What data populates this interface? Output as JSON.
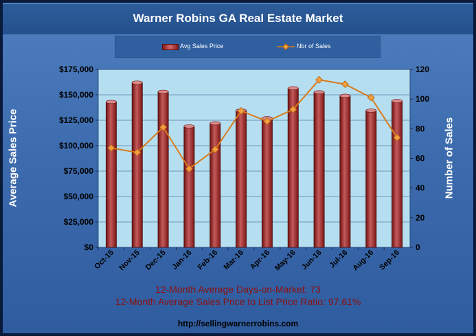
{
  "chart_data": {
    "type": "bar",
    "title": "Warner Robins GA Real Estate Market",
    "categories": [
      "Oct-15",
      "Nov-15",
      "Dec-15",
      "Jan-16",
      "Feb-16",
      "Mar-16",
      "Apr-16",
      "May-16",
      "Jun-16",
      "Jul-16",
      "Aug-16",
      "Sep-16"
    ],
    "series": [
      {
        "name": "Avg Sales Price",
        "type": "bar",
        "axis": "left",
        "values": [
          143000,
          162000,
          153000,
          119000,
          122000,
          134500,
          127000,
          156500,
          152500,
          149000,
          134500,
          144000
        ]
      },
      {
        "name": "Nbr of Sales",
        "type": "line",
        "axis": "right",
        "values": [
          67,
          64,
          81,
          53,
          66,
          92,
          85,
          93,
          113,
          110,
          101,
          74
        ]
      }
    ],
    "ylabel": "Average Sales Price",
    "y2label": "Number of Sales",
    "ylim": [
      0,
      175000
    ],
    "y2lim": [
      0,
      120
    ],
    "yticks": [
      "$0",
      "$25,000",
      "$50,000",
      "$75,000",
      "$100,000",
      "$125,000",
      "$150,000",
      "$175,000"
    ],
    "y2ticks": [
      "0",
      "20",
      "40",
      "60",
      "80",
      "100",
      "120"
    ],
    "legend": "top",
    "grid": true,
    "colors": {
      "bar": "#9b2a2a",
      "line": "#d97a1a",
      "plot_bg": "#b5dff0"
    }
  },
  "footer": {
    "line1": "12-Month Average Days-on-Market: 73",
    "line2": "12-Month Average Sales Price to List Price Ratio: 97.61%",
    "url": "http://sellingwarnerrobins.com"
  }
}
